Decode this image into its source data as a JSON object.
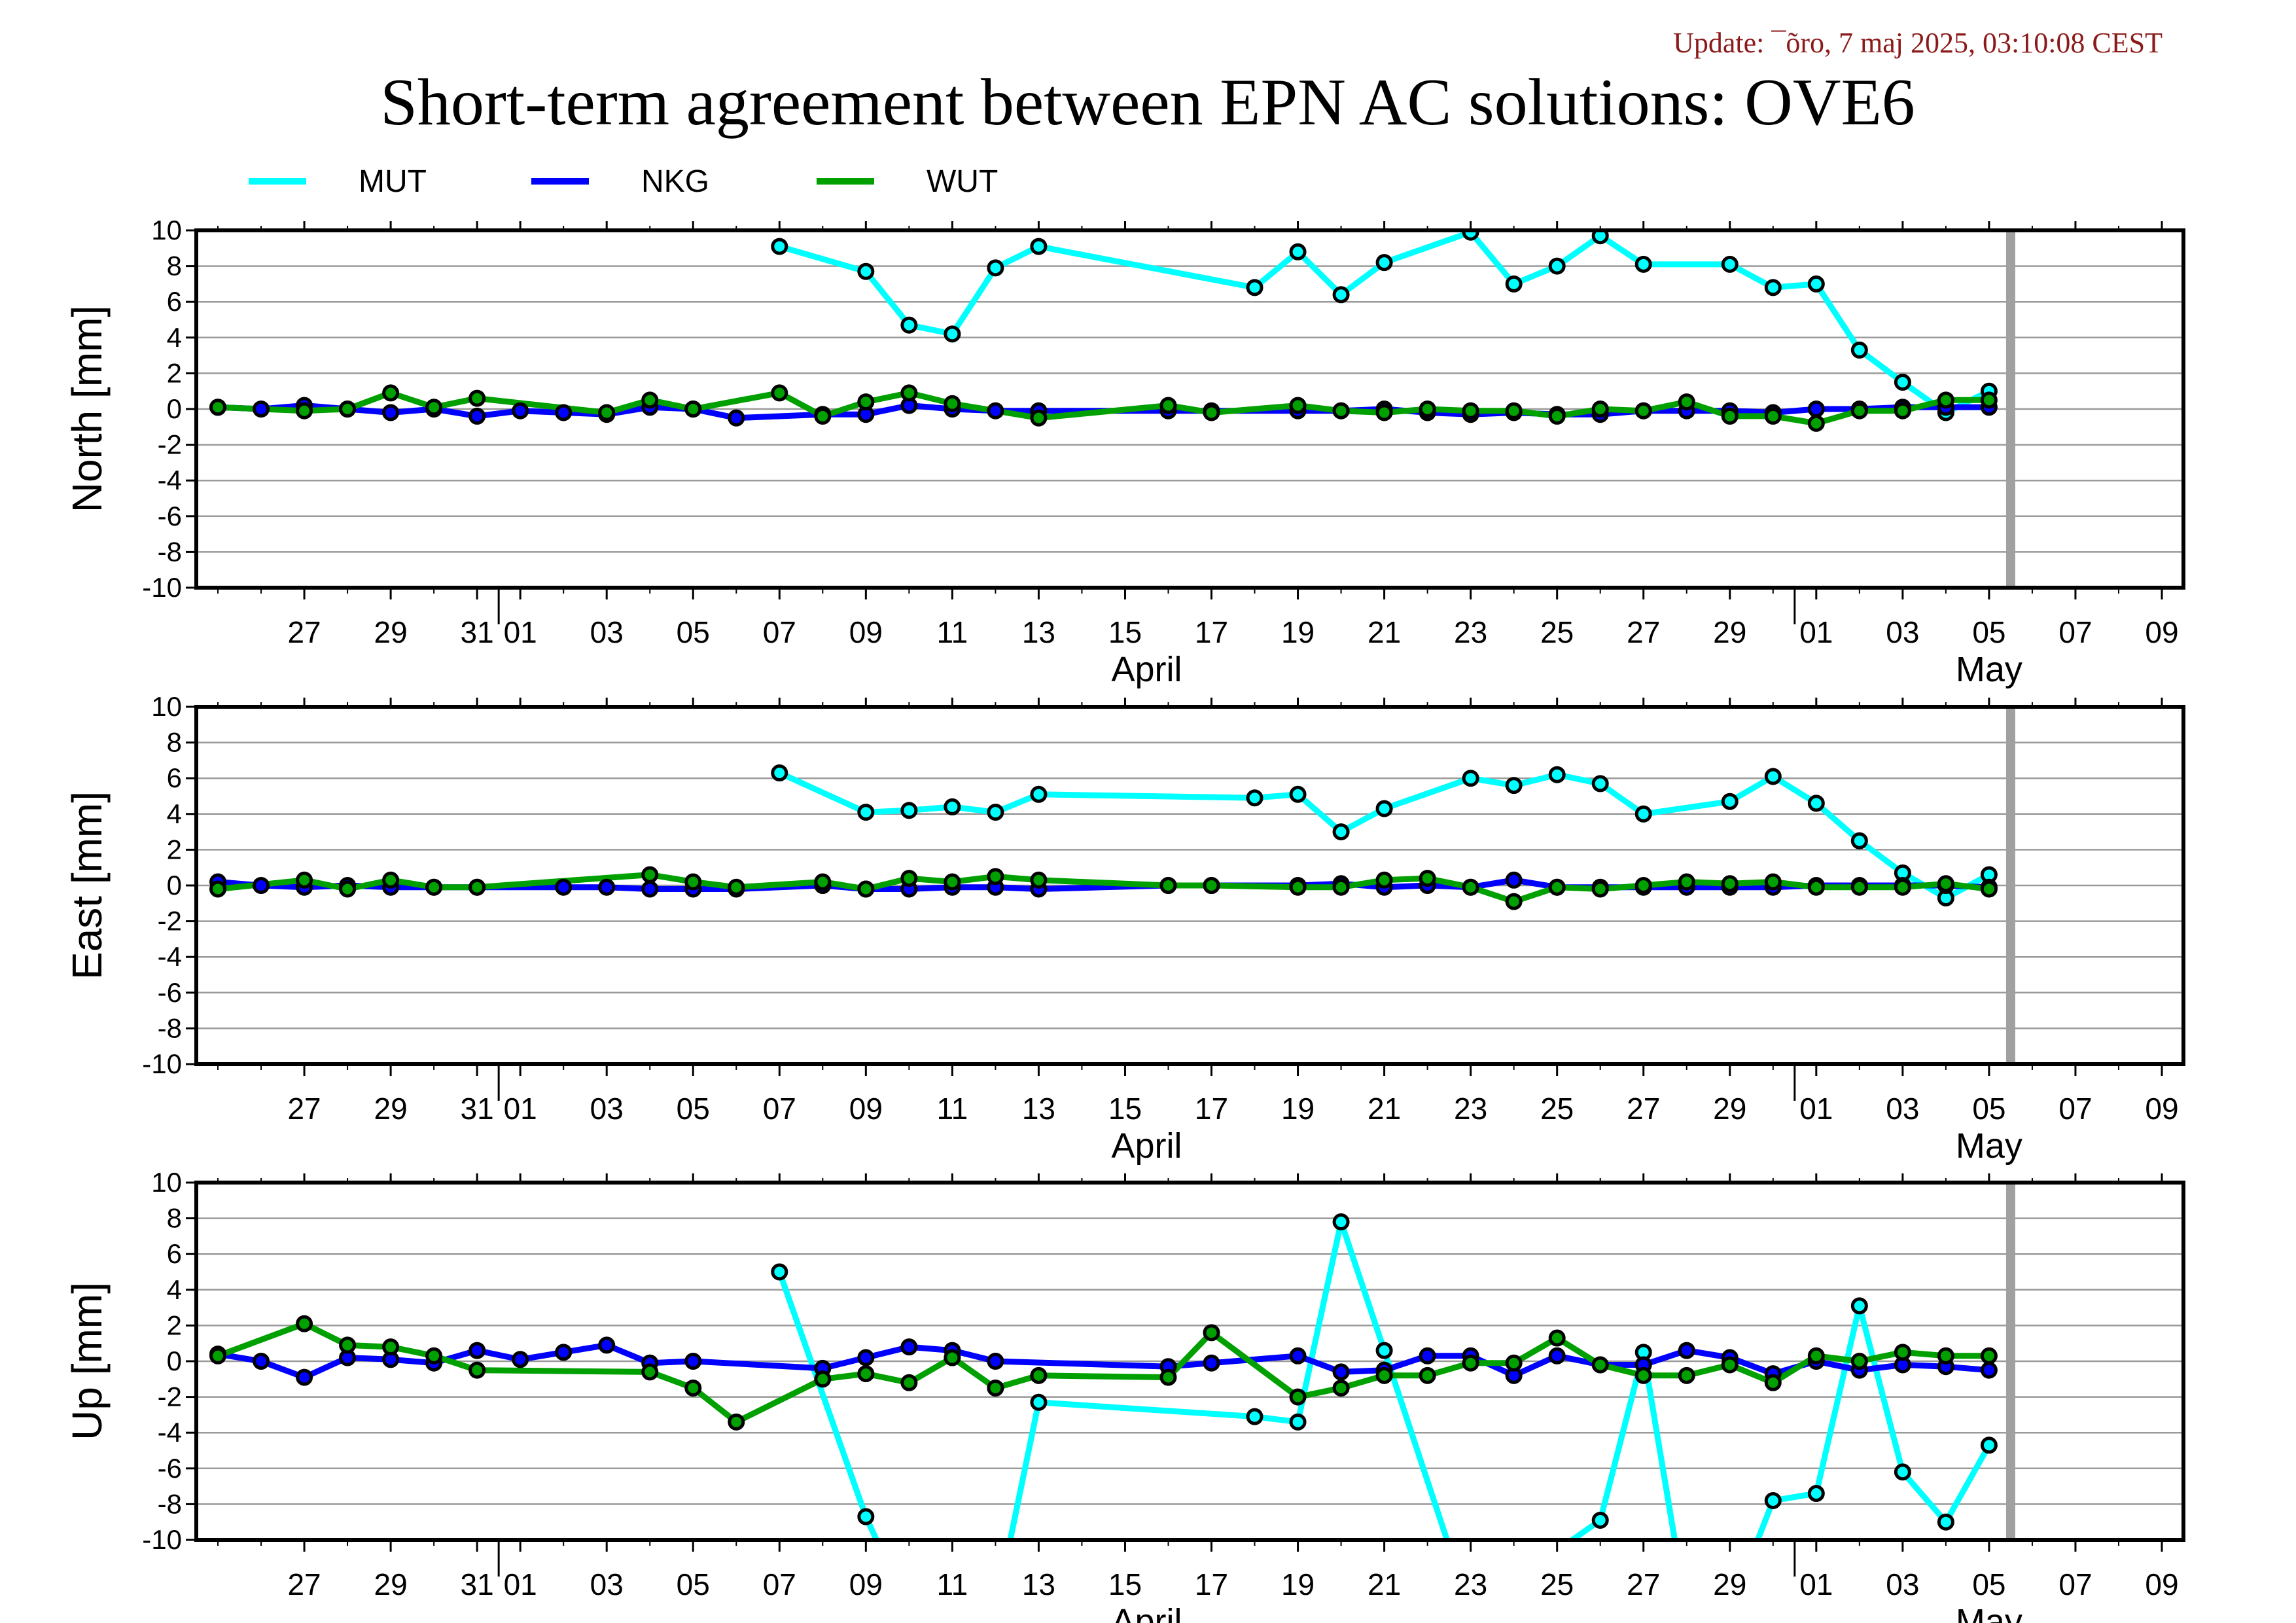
{
  "update_text": "Update: ¯õro, 7 maj 2025, 03:10:08 CEST",
  "title": "Short-term agreement between EPN AC solutions: OVE6",
  "legend": [
    {
      "name": "MUT",
      "color": "#00ffff"
    },
    {
      "name": "NKG",
      "color": "#0000ff"
    },
    {
      "name": "WUT",
      "color": "#00a000"
    }
  ],
  "colors": {
    "grid": "#9a9a9a",
    "today_marker": "#a0a0a0",
    "axis": "#000000",
    "marker_edge": "#000000"
  },
  "chart_data": {
    "type": "line",
    "x_axis": {
      "domain_days": [
        -6.5,
        39.5
      ],
      "tick_labels": [
        {
          "day": -4,
          "label": "27"
        },
        {
          "day": -2,
          "label": "29"
        },
        {
          "day": 0,
          "label": "31"
        },
        {
          "day": 1,
          "label": "01"
        },
        {
          "day": 3,
          "label": "03"
        },
        {
          "day": 5,
          "label": "05"
        },
        {
          "day": 7,
          "label": "07"
        },
        {
          "day": 9,
          "label": "09"
        },
        {
          "day": 11,
          "label": "11"
        },
        {
          "day": 13,
          "label": "13"
        },
        {
          "day": 15,
          "label": "15"
        },
        {
          "day": 17,
          "label": "17"
        },
        {
          "day": 19,
          "label": "19"
        },
        {
          "day": 21,
          "label": "21"
        },
        {
          "day": 23,
          "label": "23"
        },
        {
          "day": 25,
          "label": "25"
        },
        {
          "day": 27,
          "label": "27"
        },
        {
          "day": 29,
          "label": "29"
        },
        {
          "day": 31,
          "label": "01"
        },
        {
          "day": 33,
          "label": "03"
        },
        {
          "day": 35,
          "label": "05"
        },
        {
          "day": 37,
          "label": "07"
        },
        {
          "day": 39,
          "label": "09"
        }
      ],
      "month_labels": [
        {
          "day": 15.5,
          "label": "April"
        },
        {
          "day": 35.0,
          "label": "May"
        }
      ],
      "month_boundaries": [
        0.5,
        30.5
      ],
      "today_marker_day": 35.5
    },
    "panels": [
      {
        "ylabel": "North [mm]",
        "ylim": [
          -10,
          10
        ],
        "yticks": [
          10,
          8,
          6,
          4,
          2,
          0,
          -2,
          -4,
          -6,
          -8,
          -10
        ],
        "grid": true,
        "series": [
          {
            "name": "MUT",
            "x": [
              7,
              9,
              10,
              11,
              12,
              13,
              18,
              19,
              20,
              21,
              23,
              24,
              25,
              26,
              27,
              29,
              30,
              31,
              32,
              33,
              34,
              35
            ],
            "y": [
              9.1,
              7.7,
              4.7,
              4.2,
              7.9,
              9.1,
              6.8,
              8.8,
              6.4,
              8.2,
              9.9,
              7.0,
              8.0,
              9.7,
              8.1,
              8.1,
              6.8,
              7.0,
              3.3,
              1.5,
              -0.2,
              1.0
            ]
          },
          {
            "name": "NKG",
            "x": [
              -6,
              -5,
              -4,
              -3,
              -2,
              -1,
              0,
              1,
              2,
              3,
              4,
              5,
              6,
              8,
              9,
              10,
              11,
              12,
              13,
              16,
              17,
              19,
              20,
              21,
              22,
              23,
              24,
              25,
              26,
              27,
              28,
              29,
              30,
              31,
              32,
              33,
              34,
              35
            ],
            "y": [
              0.1,
              0.0,
              0.2,
              0.0,
              -0.2,
              0.0,
              -0.4,
              -0.1,
              -0.2,
              -0.3,
              0.1,
              0.0,
              -0.5,
              -0.3,
              -0.3,
              0.2,
              0.0,
              -0.1,
              -0.1,
              -0.1,
              -0.1,
              -0.1,
              -0.1,
              0.0,
              -0.2,
              -0.3,
              -0.2,
              -0.3,
              -0.3,
              -0.1,
              -0.1,
              -0.1,
              -0.2,
              0.0,
              0.0,
              0.1,
              0.1,
              0.1
            ]
          },
          {
            "name": "WUT",
            "x": [
              -6,
              -4,
              -3,
              -2,
              -1,
              0,
              3,
              4,
              5,
              7,
              8,
              9,
              10,
              11,
              13,
              16,
              17,
              19,
              20,
              21,
              22,
              23,
              24,
              25,
              26,
              27,
              28,
              29,
              30,
              31,
              32,
              33,
              34,
              35
            ],
            "y": [
              0.1,
              -0.1,
              0.0,
              0.9,
              0.1,
              0.6,
              -0.2,
              0.5,
              0.0,
              0.9,
              -0.4,
              0.4,
              0.9,
              0.3,
              -0.5,
              0.2,
              -0.2,
              0.2,
              -0.1,
              -0.2,
              0.0,
              -0.1,
              -0.1,
              -0.4,
              0.0,
              -0.1,
              0.4,
              -0.4,
              -0.4,
              -0.8,
              -0.1,
              -0.1,
              0.5,
              0.5
            ]
          }
        ]
      },
      {
        "ylabel": "East [mm]",
        "ylim": [
          -10,
          10
        ],
        "yticks": [
          10,
          8,
          6,
          4,
          2,
          0,
          -2,
          -4,
          -6,
          -8,
          -10
        ],
        "grid": true,
        "series": [
          {
            "name": "MUT",
            "x": [
              7,
              9,
              10,
              11,
              12,
              13,
              18,
              19,
              20,
              21,
              23,
              24,
              25,
              26,
              27,
              29,
              30,
              31,
              32,
              33,
              34,
              35
            ],
            "y": [
              6.3,
              4.1,
              4.2,
              4.4,
              4.1,
              5.1,
              4.9,
              5.1,
              3.0,
              4.3,
              6.0,
              5.6,
              6.2,
              5.7,
              4.0,
              4.7,
              6.1,
              4.6,
              2.5,
              0.7,
              -0.7,
              0.6
            ]
          },
          {
            "name": "NKG",
            "x": [
              -6,
              -5,
              -4,
              -3,
              -2,
              -1,
              0,
              2,
              3,
              4,
              5,
              6,
              8,
              9,
              10,
              11,
              12,
              13,
              16,
              17,
              19,
              20,
              21,
              22,
              23,
              24,
              25,
              26,
              27,
              28,
              29,
              30,
              31,
              32,
              33,
              34,
              35
            ],
            "y": [
              0.2,
              0.0,
              -0.1,
              0.0,
              -0.1,
              -0.1,
              -0.1,
              -0.1,
              -0.1,
              -0.2,
              -0.2,
              -0.2,
              0.0,
              -0.2,
              -0.2,
              -0.1,
              -0.1,
              -0.2,
              0.0,
              0.0,
              0.0,
              0.1,
              -0.1,
              0.0,
              -0.1,
              0.3,
              -0.1,
              -0.1,
              -0.1,
              -0.1,
              -0.1,
              -0.1,
              0.0,
              0.0,
              0.0,
              0.0,
              -0.1
            ]
          },
          {
            "name": "WUT",
            "x": [
              -6,
              -4,
              -3,
              -2,
              -1,
              0,
              4,
              5,
              6,
              8,
              9,
              10,
              11,
              12,
              13,
              16,
              17,
              19,
              20,
              21,
              22,
              23,
              24,
              25,
              26,
              27,
              28,
              29,
              30,
              31,
              32,
              33,
              34,
              35
            ],
            "y": [
              -0.2,
              0.3,
              -0.2,
              0.3,
              -0.1,
              -0.1,
              0.6,
              0.2,
              -0.1,
              0.2,
              -0.2,
              0.4,
              0.2,
              0.5,
              0.3,
              0.0,
              0.0,
              -0.1,
              -0.1,
              0.3,
              0.4,
              -0.1,
              -0.9,
              -0.1,
              -0.2,
              0.0,
              0.2,
              0.1,
              0.2,
              -0.1,
              -0.1,
              -0.1,
              0.1,
              -0.2
            ]
          }
        ]
      },
      {
        "ylabel": "Up [mm]",
        "ylim": [
          -10,
          10
        ],
        "yticks": [
          10,
          8,
          6,
          4,
          2,
          0,
          -2,
          -4,
          -6,
          -8,
          -10
        ],
        "grid": true,
        "series": [
          {
            "name": "MUT",
            "x": [
              7,
              9,
              10,
              12,
              13,
              18,
              19,
              20,
              21,
              23,
              26,
              27,
              28,
              29,
              30,
              31,
              32,
              33,
              34,
              35
            ],
            "y": [
              5.0,
              -8.7,
              -14.0,
              -14.0,
              -2.3,
              -3.1,
              -3.4,
              7.8,
              0.6,
              -14.0,
              -8.9,
              0.5,
              -14.0,
              -14.0,
              -7.8,
              -7.4,
              3.1,
              -6.2,
              -9.0,
              -4.7
            ]
          },
          {
            "name": "NKG",
            "x": [
              -6,
              -5,
              -4,
              -3,
              -2,
              -1,
              0,
              1,
              2,
              3,
              4,
              5,
              8,
              9,
              10,
              11,
              12,
              16,
              17,
              19,
              20,
              21,
              22,
              23,
              24,
              25,
              26,
              27,
              28,
              29,
              30,
              31,
              32,
              33,
              34,
              35
            ],
            "y": [
              0.4,
              0.0,
              -0.9,
              0.2,
              0.1,
              -0.1,
              0.6,
              0.1,
              0.5,
              0.9,
              -0.1,
              0.0,
              -0.4,
              0.2,
              0.8,
              0.6,
              0.0,
              -0.3,
              -0.1,
              0.3,
              -0.6,
              -0.5,
              0.3,
              0.3,
              -0.8,
              0.3,
              -0.2,
              -0.2,
              0.6,
              0.2,
              -0.7,
              0.0,
              -0.5,
              -0.2,
              -0.3,
              -0.5
            ]
          },
          {
            "name": "WUT",
            "x": [
              -6,
              -4,
              -3,
              -2,
              -1,
              0,
              4,
              5,
              6,
              8,
              9,
              10,
              11,
              12,
              13,
              16,
              17,
              19,
              20,
              21,
              22,
              23,
              24,
              25,
              26,
              27,
              28,
              29,
              30,
              31,
              32,
              33,
              34,
              35
            ],
            "y": [
              0.3,
              2.1,
              0.9,
              0.8,
              0.3,
              -0.5,
              -0.6,
              -1.5,
              -3.4,
              -1.0,
              -0.7,
              -1.2,
              0.2,
              -1.5,
              -0.8,
              -0.9,
              1.6,
              -2.0,
              -1.5,
              -0.8,
              -0.8,
              -0.1,
              -0.1,
              1.3,
              -0.2,
              -0.8,
              -0.8,
              -0.2,
              -1.2,
              0.3,
              0.0,
              0.5,
              0.3,
              0.3
            ]
          }
        ]
      }
    ]
  }
}
